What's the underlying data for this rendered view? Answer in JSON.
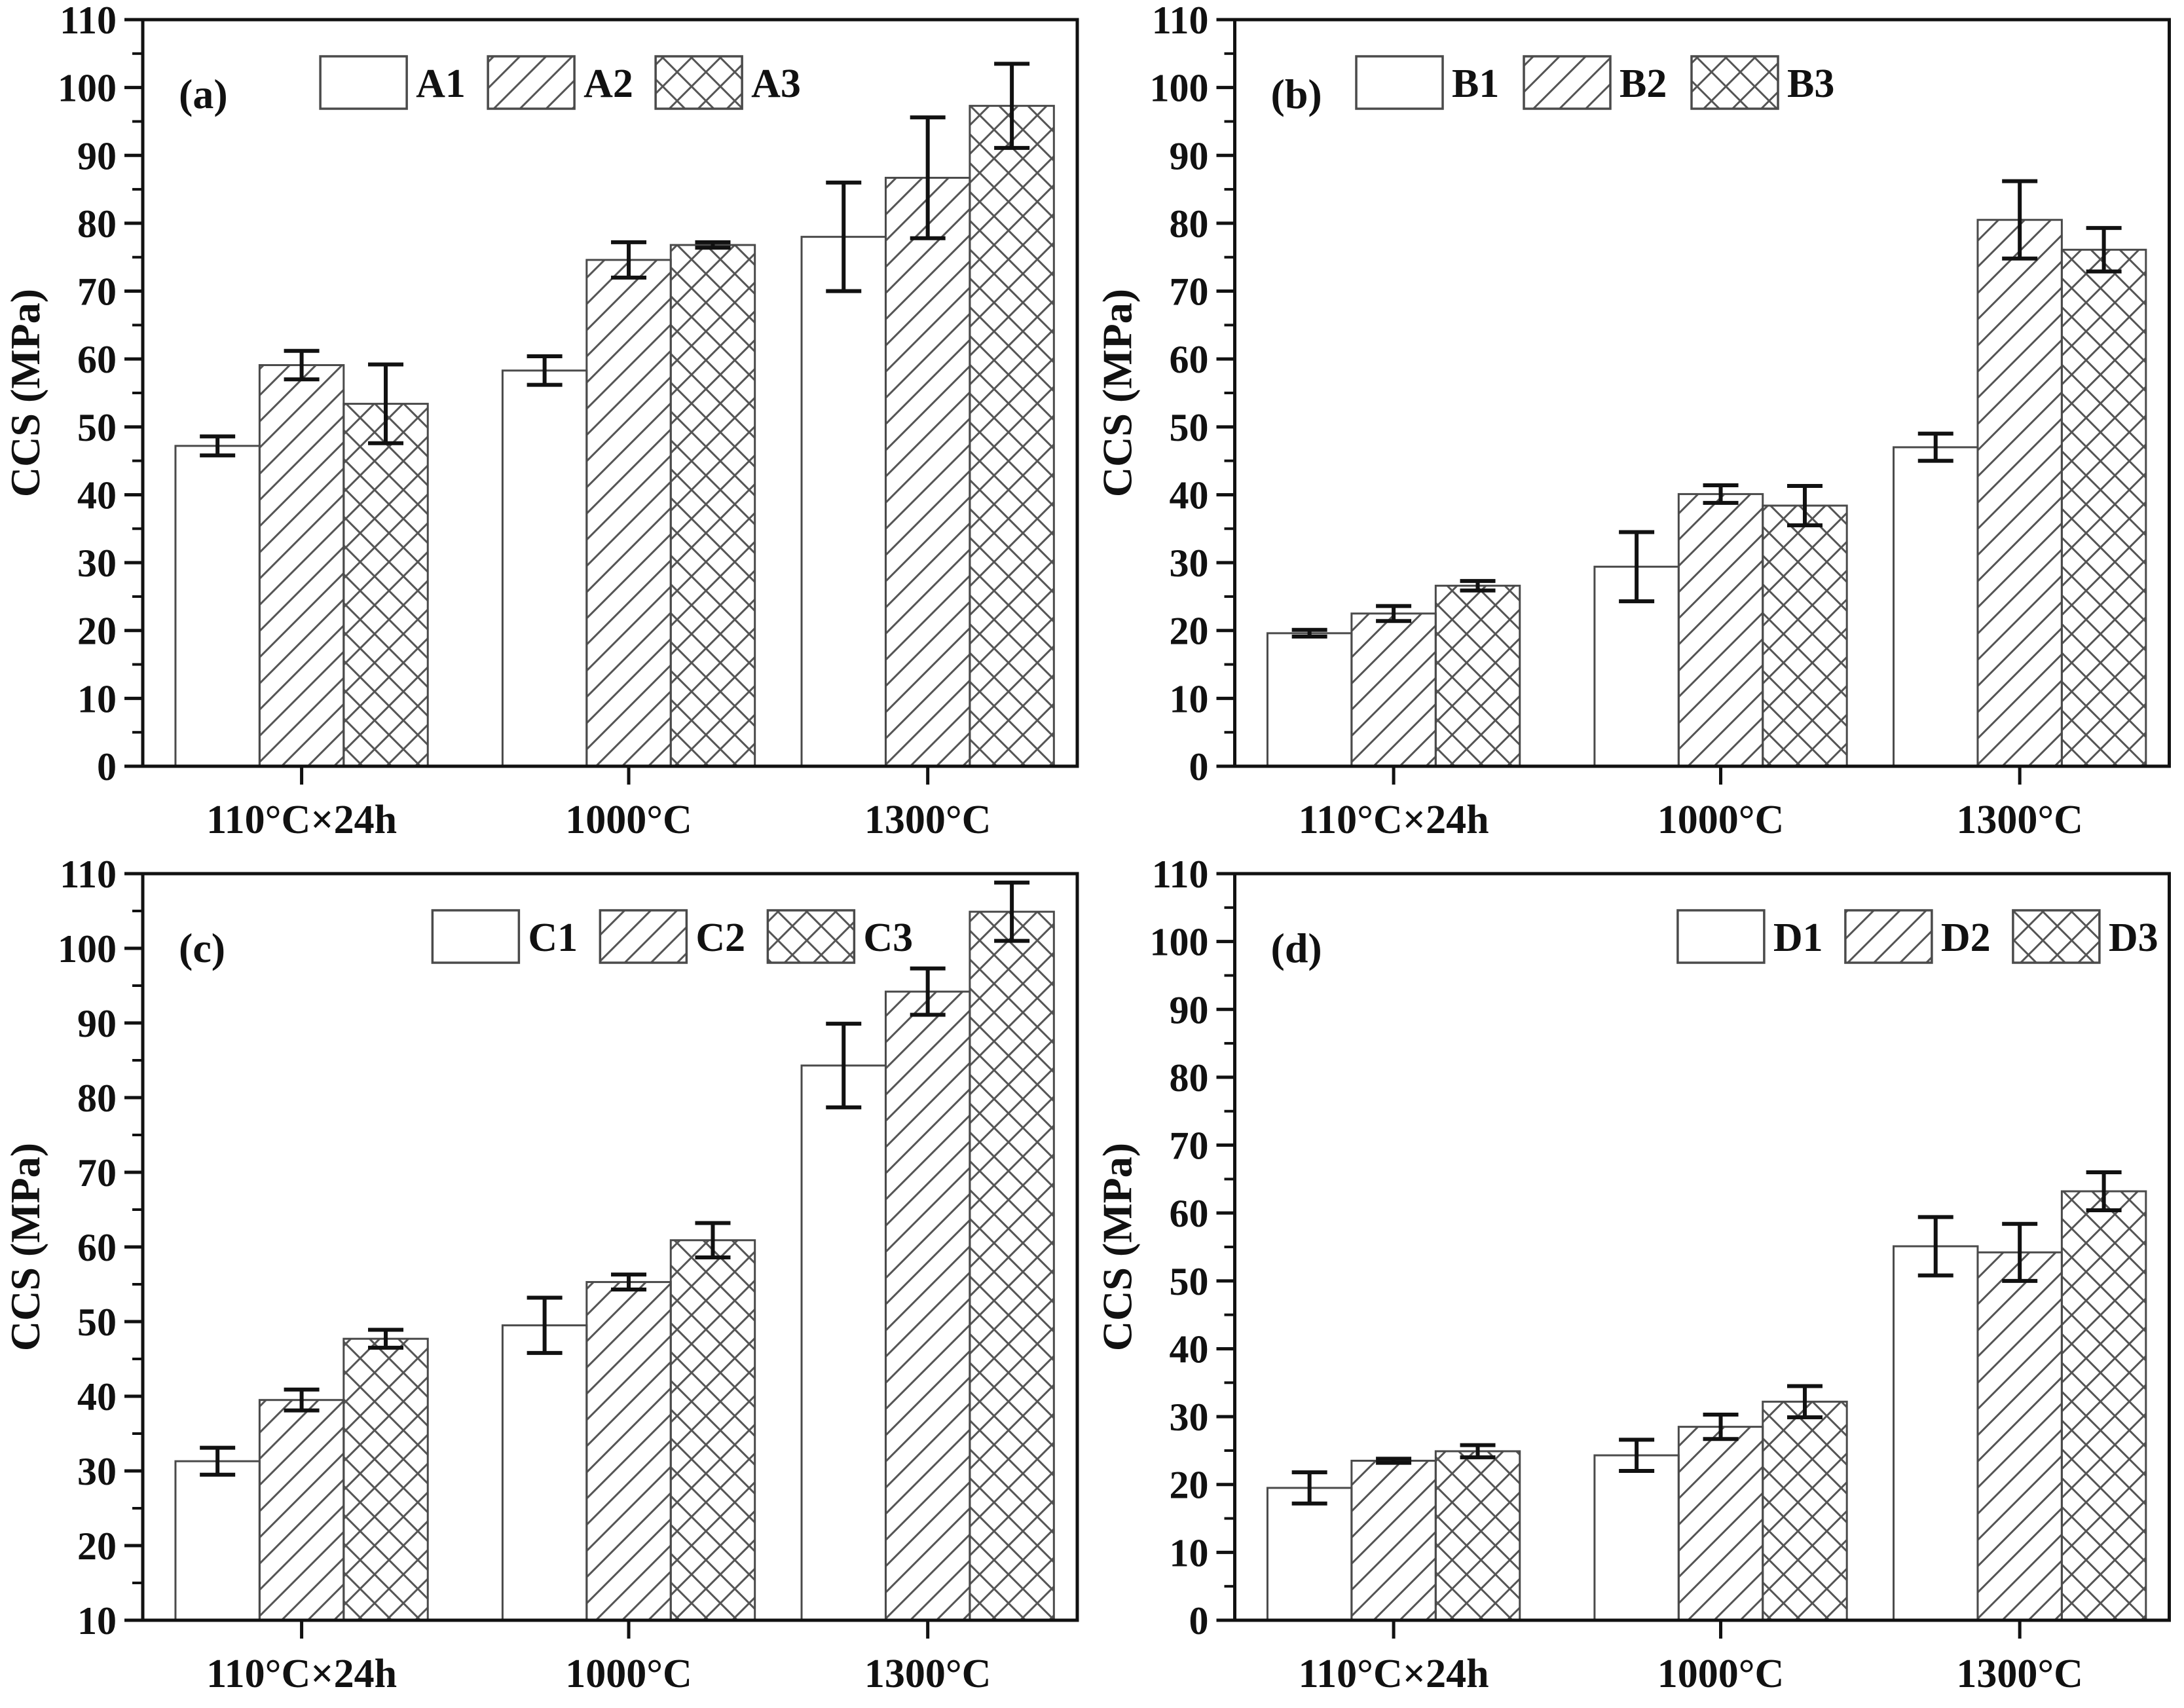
{
  "figure": {
    "title": "CCS bar charts, four panels (a)-(d)",
    "background": "#ffffff"
  },
  "colors": {
    "axis": "#111111",
    "text": "#111111",
    "bar_edge": "#4a4a4a",
    "hatch_line": "#555555",
    "error_bar": "#111111",
    "bar_fill": "#ffffff"
  },
  "chart_data": [
    {
      "type": "bar",
      "panel_label": "(a)",
      "ylabel": "CCS (MPa)",
      "xlabel": "",
      "ylim": [
        0,
        110
      ],
      "ytick_step": 10,
      "yminor_step": 5,
      "grid": false,
      "legend_position": "top-inside",
      "legend_x_frac": 0.19,
      "categories": [
        "110°C×24h",
        "1000°C",
        "1300°C"
      ],
      "series": [
        {
          "name": "A1",
          "hatch": "none",
          "values": [
            47.2,
            58.3,
            78.0
          ],
          "errors": [
            1.4,
            2.1,
            8.0
          ]
        },
        {
          "name": "A2",
          "hatch": "diagonal",
          "values": [
            59.1,
            74.6,
            86.7
          ],
          "errors": [
            2.1,
            2.6,
            8.9
          ]
        },
        {
          "name": "A3",
          "hatch": "crosshatch",
          "values": [
            53.4,
            76.8,
            97.3
          ],
          "errors": [
            5.8,
            0.4,
            6.2
          ]
        }
      ]
    },
    {
      "type": "bar",
      "panel_label": "(b)",
      "ylabel": "CCS (MPa)",
      "xlabel": "",
      "ylim": [
        0,
        110
      ],
      "ytick_step": 10,
      "yminor_step": 5,
      "grid": false,
      "legend_position": "top-inside",
      "legend_x_frac": 0.13,
      "categories": [
        "110°C×24h",
        "1000°C",
        "1300°C"
      ],
      "series": [
        {
          "name": "B1",
          "hatch": "none",
          "values": [
            19.6,
            29.4,
            47.0
          ],
          "errors": [
            0.5,
            5.1,
            2.0
          ]
        },
        {
          "name": "B2",
          "hatch": "diagonal",
          "values": [
            22.5,
            40.1,
            80.5
          ],
          "errors": [
            1.1,
            1.3,
            5.7
          ]
        },
        {
          "name": "B3",
          "hatch": "crosshatch",
          "values": [
            26.6,
            38.4,
            76.1
          ],
          "errors": [
            0.7,
            2.9,
            3.2
          ]
        }
      ]
    },
    {
      "type": "bar",
      "panel_label": "(c)",
      "ylabel": "CCS (MPa)",
      "xlabel": "",
      "ylim": [
        10,
        110
      ],
      "ytick_step": 10,
      "yminor_step": 5,
      "grid": false,
      "legend_position": "top-inside",
      "legend_x_frac": 0.31,
      "categories": [
        "110°C×24h",
        "1000°C",
        "1300°C"
      ],
      "series": [
        {
          "name": "C1",
          "hatch": "none",
          "values": [
            31.3,
            49.5,
            84.3
          ],
          "errors": [
            1.8,
            3.7,
            5.6
          ]
        },
        {
          "name": "C2",
          "hatch": "diagonal",
          "values": [
            39.5,
            55.3,
            94.2
          ],
          "errors": [
            1.4,
            1.0,
            3.1
          ]
        },
        {
          "name": "C3",
          "hatch": "crosshatch",
          "values": [
            47.7,
            60.9,
            104.9
          ],
          "errors": [
            1.2,
            2.3,
            3.9
          ]
        }
      ]
    },
    {
      "type": "bar",
      "panel_label": "(d)",
      "ylabel": "CCS (MPa)",
      "xlabel": "",
      "ylim": [
        0,
        110
      ],
      "ytick_step": 10,
      "yminor_step": 5,
      "grid": false,
      "legend_position": "top-inside",
      "legend_x_frac": 0.474,
      "categories": [
        "110°C×24h",
        "1000°C",
        "1300°C"
      ],
      "series": [
        {
          "name": "D1",
          "hatch": "none",
          "values": [
            19.5,
            24.3,
            55.1
          ],
          "errors": [
            2.3,
            2.3,
            4.3
          ]
        },
        {
          "name": "D2",
          "hatch": "diagonal",
          "values": [
            23.5,
            28.5,
            54.2
          ],
          "errors": [
            0.3,
            1.8,
            4.2
          ]
        },
        {
          "name": "D3",
          "hatch": "crosshatch",
          "values": [
            24.9,
            32.2,
            63.2
          ],
          "errors": [
            0.9,
            2.3,
            2.8
          ]
        }
      ]
    }
  ]
}
